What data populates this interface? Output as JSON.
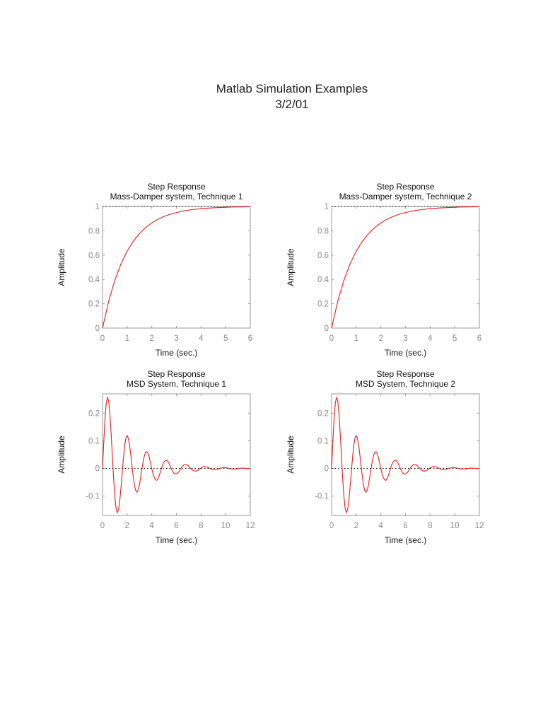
{
  "page": {
    "title_line1": "Matlab Simulation Examples",
    "title_line2": "3/2/01"
  },
  "chart_data": [
    {
      "type": "line",
      "title": "Step Response",
      "subtitle": "Mass-Damper system, Technique 1",
      "xlabel": "Time (sec.)",
      "ylabel": "Amplitude",
      "xlim": [
        0,
        6
      ],
      "ylim": [
        0,
        1
      ],
      "xticks": [
        0,
        1,
        2,
        3,
        4,
        5,
        6
      ],
      "yticks": [
        0,
        0.2,
        0.4,
        0.6,
        0.8,
        1
      ],
      "reference_line": 1,
      "grid": false,
      "series": [
        {
          "color": "#e0201c",
          "x": [
            0,
            0.25,
            0.5,
            0.75,
            1,
            1.25,
            1.5,
            1.75,
            2,
            2.25,
            2.5,
            2.75,
            3,
            3.25,
            3.5,
            3.75,
            4,
            4.25,
            4.5,
            4.75,
            5,
            5.25,
            5.5,
            5.75,
            6
          ],
          "y": [
            0,
            0.221,
            0.393,
            0.528,
            0.632,
            0.713,
            0.777,
            0.826,
            0.865,
            0.895,
            0.918,
            0.936,
            0.95,
            0.961,
            0.97,
            0.976,
            0.982,
            0.986,
            0.989,
            0.991,
            0.993,
            0.995,
            0.996,
            0.997,
            0.998
          ]
        }
      ]
    },
    {
      "type": "line",
      "title": "Step Response",
      "subtitle": "Mass-Damper system, Technique 2",
      "xlabel": "Time (sec.)",
      "ylabel": "Amplitude",
      "xlim": [
        0,
        6
      ],
      "ylim": [
        0,
        1
      ],
      "xticks": [
        0,
        1,
        2,
        3,
        4,
        5,
        6
      ],
      "yticks": [
        0,
        0.2,
        0.4,
        0.6,
        0.8,
        1
      ],
      "reference_line": 1,
      "grid": false,
      "series": [
        {
          "color": "#e0201c",
          "x": [
            0,
            0.25,
            0.5,
            0.75,
            1,
            1.25,
            1.5,
            1.75,
            2,
            2.25,
            2.5,
            2.75,
            3,
            3.25,
            3.5,
            3.75,
            4,
            4.25,
            4.5,
            4.75,
            5,
            5.25,
            5.5,
            5.75,
            6
          ],
          "y": [
            0,
            0.221,
            0.393,
            0.528,
            0.632,
            0.713,
            0.777,
            0.826,
            0.865,
            0.895,
            0.918,
            0.936,
            0.95,
            0.961,
            0.97,
            0.976,
            0.982,
            0.986,
            0.989,
            0.991,
            0.993,
            0.995,
            0.996,
            0.997,
            0.998
          ]
        }
      ]
    },
    {
      "type": "line",
      "title": "Step Response",
      "subtitle": "MSD System, Technique 1",
      "xlabel": "Time (sec.)",
      "ylabel": "Amplitude",
      "xlim": [
        0,
        12
      ],
      "ylim": [
        -0.17,
        0.27
      ],
      "xticks": [
        0,
        2,
        4,
        6,
        8,
        10,
        12
      ],
      "yticks": [
        -0.1,
        0,
        0.1,
        0.2
      ],
      "reference_line": 0,
      "grid": false,
      "series": [
        {
          "color": "#e0201c",
          "x": [
            0,
            0.1,
            0.2,
            0.3,
            0.4,
            0.5,
            0.6,
            0.7,
            0.8,
            0.9,
            1,
            1.1,
            1.2,
            1.3,
            1.4,
            1.5,
            1.6,
            1.7,
            1.8,
            1.9,
            2,
            2.1,
            2.2,
            2.3,
            2.4,
            2.5,
            2.6,
            2.7,
            2.8,
            2.9,
            3,
            3.1,
            3.2,
            3.3,
            3.4,
            3.5,
            3.6,
            3.7,
            3.8,
            3.9,
            4,
            4.1,
            4.2,
            4.3,
            4.4,
            4.5,
            4.6,
            4.7,
            4.8,
            4.9,
            5,
            5.1,
            5.2,
            5.3,
            5.4,
            5.5,
            5.6,
            5.7,
            5.8,
            5.9,
            6,
            6.1,
            6.2,
            6.3,
            6.4,
            6.5,
            6.6,
            6.7,
            6.8,
            6.9,
            7,
            7.1,
            7.2,
            7.3,
            7.4,
            7.5,
            7.6,
            7.7,
            7.8,
            7.9,
            8,
            8.1,
            8.2,
            8.3,
            8.4,
            8.5,
            8.6,
            8.7,
            8.8,
            8.9,
            9,
            9.1,
            9.2,
            9.3,
            9.4,
            9.5,
            9.6,
            9.7,
            9.8,
            9.9,
            10,
            10.1,
            10.2,
            10.3,
            10.4,
            10.5,
            10.6,
            10.7,
            10.8,
            10.9,
            11,
            11.1,
            11.2,
            11.3,
            11.4,
            11.5,
            11.6,
            11.7,
            11.8,
            11.9,
            12
          ],
          "y": [
            0,
            0.094,
            0.178,
            0.235,
            0.258,
            0.244,
            0.196,
            0.126,
            0.044,
            -0.037,
            -0.101,
            -0.144,
            -0.16,
            -0.149,
            -0.117,
            -0.069,
            -0.014,
            0.039,
            0.083,
            0.11,
            0.119,
            0.109,
            0.083,
            0.047,
            0.007,
            -0.031,
            -0.062,
            -0.081,
            -0.086,
            -0.077,
            -0.058,
            -0.031,
            -0.002,
            0.025,
            0.046,
            0.058,
            0.061,
            0.055,
            0.04,
            0.02,
            -0.001,
            -0.02,
            -0.033,
            -0.041,
            -0.043,
            -0.038,
            -0.027,
            -0.013,
            0.002,
            0.015,
            0.024,
            0.029,
            0.03,
            0.026,
            0.018,
            0.008,
            -0.002,
            -0.011,
            -0.017,
            -0.02,
            -0.02,
            -0.017,
            -0.012,
            -0.005,
            0.002,
            0.008,
            0.012,
            0.014,
            0.014,
            0.012,
            0.008,
            0.003,
            -0.002,
            -0.006,
            -0.008,
            -0.01,
            -0.009,
            -0.008,
            -0.005,
            -0.002,
            0.002,
            0.004,
            0.006,
            0.007,
            0.006,
            0.005,
            0.003,
            0.001,
            -0.001,
            -0.003,
            -0.004,
            -0.005,
            -0.004,
            -0.003,
            -0.002,
            0,
            0.001,
            0.002,
            0.003,
            0.003,
            0.003,
            0.002,
            0.001,
            0,
            -0.001,
            -0.002,
            -0.002,
            -0.002,
            -0.002,
            -0.001,
            0,
            0,
            0.001,
            0.001,
            0.001,
            0.001,
            0.001,
            0,
            0,
            0,
            -0.001
          ]
        }
      ]
    },
    {
      "type": "line",
      "title": "Step Response",
      "subtitle": "MSD System, Technique 2",
      "xlabel": "Time (sec.)",
      "ylabel": "Amplitude",
      "xlim": [
        0,
        12
      ],
      "ylim": [
        -0.17,
        0.27
      ],
      "xticks": [
        0,
        2,
        4,
        6,
        8,
        10,
        12
      ],
      "yticks": [
        -0.1,
        0,
        0.1,
        0.2
      ],
      "reference_line": 0,
      "grid": false,
      "series": [
        {
          "color": "#e0201c",
          "x": [
            0,
            0.1,
            0.2,
            0.3,
            0.4,
            0.5,
            0.6,
            0.7,
            0.8,
            0.9,
            1,
            1.1,
            1.2,
            1.3,
            1.4,
            1.5,
            1.6,
            1.7,
            1.8,
            1.9,
            2,
            2.1,
            2.2,
            2.3,
            2.4,
            2.5,
            2.6,
            2.7,
            2.8,
            2.9,
            3,
            3.1,
            3.2,
            3.3,
            3.4,
            3.5,
            3.6,
            3.7,
            3.8,
            3.9,
            4,
            4.1,
            4.2,
            4.3,
            4.4,
            4.5,
            4.6,
            4.7,
            4.8,
            4.9,
            5,
            5.1,
            5.2,
            5.3,
            5.4,
            5.5,
            5.6,
            5.7,
            5.8,
            5.9,
            6,
            6.1,
            6.2,
            6.3,
            6.4,
            6.5,
            6.6,
            6.7,
            6.8,
            6.9,
            7,
            7.1,
            7.2,
            7.3,
            7.4,
            7.5,
            7.6,
            7.7,
            7.8,
            7.9,
            8,
            8.1,
            8.2,
            8.3,
            8.4,
            8.5,
            8.6,
            8.7,
            8.8,
            8.9,
            9,
            9.1,
            9.2,
            9.3,
            9.4,
            9.5,
            9.6,
            9.7,
            9.8,
            9.9,
            10,
            10.1,
            10.2,
            10.3,
            10.4,
            10.5,
            10.6,
            10.7,
            10.8,
            10.9,
            11,
            11.1,
            11.2,
            11.3,
            11.4,
            11.5,
            11.6,
            11.7,
            11.8,
            11.9,
            12
          ],
          "y": [
            0,
            0.094,
            0.178,
            0.235,
            0.258,
            0.244,
            0.196,
            0.126,
            0.044,
            -0.037,
            -0.101,
            -0.144,
            -0.16,
            -0.149,
            -0.117,
            -0.069,
            -0.014,
            0.039,
            0.083,
            0.11,
            0.119,
            0.109,
            0.083,
            0.047,
            0.007,
            -0.031,
            -0.062,
            -0.081,
            -0.086,
            -0.077,
            -0.058,
            -0.031,
            -0.002,
            0.025,
            0.046,
            0.058,
            0.061,
            0.055,
            0.04,
            0.02,
            -0.001,
            -0.02,
            -0.033,
            -0.041,
            -0.043,
            -0.038,
            -0.027,
            -0.013,
            0.002,
            0.015,
            0.024,
            0.029,
            0.03,
            0.026,
            0.018,
            0.008,
            -0.002,
            -0.011,
            -0.017,
            -0.02,
            -0.02,
            -0.017,
            -0.012,
            -0.005,
            0.002,
            0.008,
            0.012,
            0.014,
            0.014,
            0.012,
            0.008,
            0.003,
            -0.002,
            -0.006,
            -0.008,
            -0.01,
            -0.009,
            -0.008,
            -0.005,
            -0.002,
            0.002,
            0.004,
            0.006,
            0.007,
            0.006,
            0.005,
            0.003,
            0.001,
            -0.001,
            -0.003,
            -0.004,
            -0.005,
            -0.004,
            -0.003,
            -0.002,
            0,
            0.001,
            0.002,
            0.003,
            0.003,
            0.003,
            0.002,
            0.001,
            0,
            -0.001,
            -0.002,
            -0.002,
            -0.002,
            -0.002,
            -0.001,
            0,
            0,
            0.001,
            0.001,
            0.001,
            0.001,
            0.001,
            0,
            0,
            0,
            -0.001
          ]
        }
      ]
    }
  ]
}
